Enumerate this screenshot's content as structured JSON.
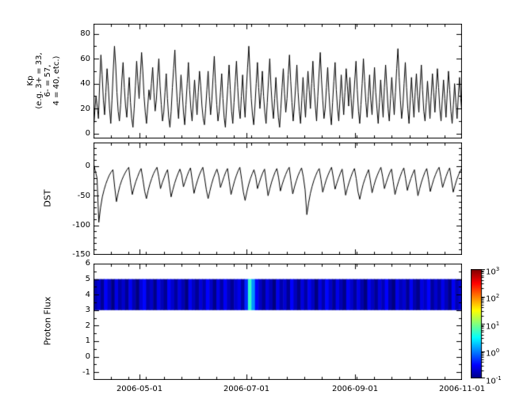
{
  "figure": {
    "background": "#ffffff"
  },
  "x_axis": {
    "tick_labels": [
      "2006-05-01",
      "2006-07-01",
      "2006-09-01",
      "2006-11-01"
    ],
    "tick_days": [
      26,
      87,
      149,
      210
    ],
    "domain_days": [
      0,
      210
    ],
    "minor_step_days": 10
  },
  "chart_data": [
    {
      "type": "line",
      "name": "kp-index",
      "ylabel_lines": [
        "Kp",
        "(e.g. 3+ = 33,",
        "6- = 57,",
        "4 = 40, etc.)"
      ],
      "ylim": [
        -4,
        88
      ],
      "yticks": [
        0,
        20,
        40,
        60,
        80
      ],
      "ytick_labels": [
        "0",
        "20",
        "40",
        "60",
        "80"
      ],
      "minor_step": 10,
      "line_color": "#000000",
      "values": [
        3,
        17,
        30,
        22,
        12,
        40,
        63,
        47,
        27,
        15,
        33,
        52,
        38,
        20,
        8,
        27,
        50,
        70,
        55,
        33,
        18,
        10,
        23,
        43,
        57,
        37,
        22,
        13,
        30,
        45,
        25,
        12,
        5,
        20,
        38,
        58,
        42,
        28,
        47,
        65,
        50,
        30,
        17,
        8,
        22,
        35,
        27,
        40,
        53,
        33,
        18,
        27,
        45,
        60,
        38,
        23,
        10,
        17,
        33,
        48,
        28,
        13,
        5,
        18,
        37,
        52,
        67,
        43,
        25,
        12,
        30,
        47,
        33,
        17,
        7,
        23,
        40,
        57,
        35,
        20,
        10,
        27,
        43,
        28,
        15,
        33,
        50,
        38,
        22,
        12,
        7,
        20,
        35,
        50,
        30,
        15,
        27,
        45,
        62,
        40,
        23,
        10,
        18,
        33,
        48,
        28,
        13,
        5,
        22,
        38,
        55,
        35,
        18,
        8,
        25,
        42,
        58,
        37,
        20,
        12,
        30,
        47,
        27,
        13,
        35,
        53,
        70,
        48,
        28,
        15,
        7,
        22,
        40,
        57,
        37,
        20,
        33,
        50,
        30,
        17,
        8,
        25,
        43,
        60,
        38,
        22,
        12,
        28,
        45,
        27,
        13,
        5,
        20,
        37,
        52,
        32,
        17,
        28,
        47,
        63,
        42,
        25,
        10,
        22,
        38,
        55,
        33,
        18,
        8,
        27,
        45,
        28,
        13,
        33,
        50,
        35,
        20,
        40,
        58,
        37,
        22,
        10,
        30,
        48,
        65,
        43,
        27,
        12,
        20,
        37,
        53,
        33,
        17,
        7,
        25,
        42,
        57,
        35,
        20,
        10,
        28,
        47,
        30,
        15,
        33,
        52,
        38,
        22,
        45,
        28,
        12,
        27,
        43,
        58,
        35,
        18,
        8,
        23,
        40,
        60,
        42,
        25,
        13,
        30,
        47,
        27,
        15,
        35,
        53,
        33,
        20,
        8,
        25,
        43,
        28,
        13,
        37,
        55,
        38,
        20,
        10,
        28,
        45,
        30,
        15,
        33,
        52,
        68,
        45,
        27,
        12,
        22,
        40,
        57,
        37,
        20,
        8,
        27,
        45,
        28,
        13,
        33,
        48,
        30,
        17,
        38,
        55,
        35,
        18,
        10,
        25,
        42,
        27,
        12,
        30,
        48,
        33,
        17,
        35,
        52,
        37,
        20,
        10,
        27,
        43,
        28,
        13,
        32,
        50,
        35,
        18,
        8,
        23,
        40,
        25,
        12,
        30,
        45,
        28,
        15
      ]
    },
    {
      "type": "line",
      "name": "dst-index",
      "ylabel": "DST",
      "ylim": [
        -150,
        40
      ],
      "yticks": [
        0,
        -50,
        -100,
        -150
      ],
      "ytick_labels": [
        "0",
        "-50",
        "-100",
        "-150"
      ],
      "minor_step": 10,
      "line_color": "#000000",
      "values": [
        5,
        -8,
        -20,
        -95,
        -70,
        -52,
        -40,
        -30,
        -22,
        -15,
        -10,
        -6,
        -35,
        -60,
        -45,
        -33,
        -24,
        -17,
        -11,
        -6,
        -2,
        -28,
        -48,
        -36,
        -26,
        -18,
        -10,
        -4,
        -22,
        -42,
        -55,
        -41,
        -30,
        -21,
        -13,
        -7,
        -2,
        -18,
        -38,
        -28,
        -20,
        -12,
        -6,
        -30,
        -52,
        -40,
        -29,
        -20,
        -12,
        -5,
        -15,
        -35,
        -26,
        -17,
        -9,
        -3,
        -24,
        -46,
        -34,
        -24,
        -15,
        -8,
        -2,
        -20,
        -40,
        -55,
        -42,
        -30,
        -20,
        -12,
        -5,
        -16,
        -36,
        -27,
        -18,
        -10,
        -4,
        -26,
        -48,
        -36,
        -25,
        -16,
        -8,
        -2,
        -22,
        -44,
        -58,
        -43,
        -31,
        -21,
        -13,
        -6,
        -18,
        -38,
        -28,
        -19,
        -11,
        -5,
        -28,
        -50,
        -38,
        -27,
        -18,
        -10,
        -4,
        -20,
        -42,
        -31,
        -22,
        -14,
        -7,
        -2,
        -25,
        -47,
        -35,
        -25,
        -16,
        -9,
        -3,
        -18,
        -40,
        -82,
        -62,
        -46,
        -34,
        -24,
        -16,
        -9,
        -4,
        -22,
        -44,
        -33,
        -23,
        -15,
        -8,
        -2,
        -19,
        -39,
        -29,
        -20,
        -12,
        -5,
        -27,
        -49,
        -37,
        -27,
        -18,
        -10,
        -4,
        -21,
        -43,
        -56,
        -42,
        -30,
        -21,
        -13,
        -6,
        -24,
        -45,
        -33,
        -23,
        -15,
        -8,
        -2,
        -18,
        -38,
        -28,
        -19,
        -11,
        -5,
        -26,
        -48,
        -36,
        -26,
        -17,
        -9,
        -3,
        -21,
        -41,
        -30,
        -21,
        -13,
        -6,
        -28,
        -50,
        -38,
        -27,
        -18,
        -10,
        -4,
        -22,
        -43,
        -32,
        -22,
        -14,
        -7,
        -2,
        -18,
        -36,
        -26,
        -17,
        -9,
        -3,
        -23,
        -44,
        -33,
        -23,
        -15,
        -8,
        -3
      ]
    },
    {
      "type": "heatmap",
      "name": "proton-flux-spectrogram",
      "ylabel": "Proton Flux",
      "ylim": [
        -1.5,
        6
      ],
      "yticks": [
        -1,
        0,
        1,
        2,
        3,
        4,
        5,
        6
      ],
      "ytick_labels": [
        "-1",
        "0",
        "1",
        "2",
        "3",
        "4",
        "5",
        "6"
      ],
      "minor_step": 0.5,
      "energy_band": [
        3,
        5
      ],
      "colormap": "jet",
      "scale": "log",
      "clim": [
        0.1,
        1000
      ],
      "flux_columns": [
        0.15,
        0.22,
        0.12,
        0.3,
        0.18,
        0.1,
        0.25,
        0.14,
        0.2,
        0.12,
        0.28,
        0.16,
        0.1,
        0.22,
        0.33,
        0.14,
        0.19,
        0.11,
        0.26,
        0.17,
        0.12,
        0.3,
        0.2,
        0.13,
        0.24,
        0.16,
        0.1,
        0.28,
        0.18,
        0.12,
        0.22,
        0.15,
        0.32,
        0.19,
        0.11,
        0.25,
        0.14,
        0.29,
        0.17,
        0.12,
        0.2,
        0.26,
        0.14,
        0.45,
        5,
        1.2,
        0.3,
        0.18,
        0.12,
        0.24,
        0.16,
        0.1,
        0.27,
        0.15,
        0.21,
        0.12,
        0.31,
        0.17,
        0.11,
        0.23,
        0.14,
        0.28,
        0.18,
        0.1,
        0.24,
        0.15,
        0.33,
        0.19,
        0.12,
        0.26,
        0.16,
        0.11,
        0.29,
        0.2,
        0.13,
        0.25,
        0.15,
        0.1,
        0.27,
        0.18,
        0.12,
        0.23,
        0.16,
        0.31,
        0.14,
        0.1,
        0.26,
        0.17,
        0.21,
        0.12,
        0.28,
        0.15,
        0.11,
        0.24,
        0.18,
        0.32,
        0.13,
        0.2,
        0.14,
        0.26,
        0.17,
        0.11,
        0.29,
        0.16,
        0.22
      ]
    }
  ],
  "colorbar": {
    "base": "10",
    "tick_exponents": [
      "3",
      "2",
      "1",
      "0",
      "-1"
    ],
    "clim_exponents": [
      -1,
      3
    ]
  }
}
